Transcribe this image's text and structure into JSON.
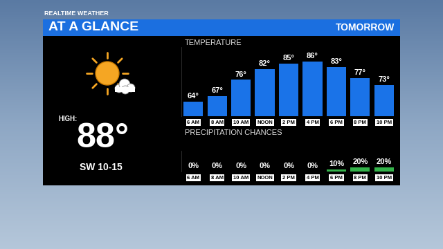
{
  "header": {
    "branding": "REALTIME WEATHER",
    "title": "AT A GLANCE",
    "period": "TOMORROW",
    "high_label": "HIGH:",
    "high": "88°",
    "wind": "SW 10-15"
  },
  "chart_data": [
    {
      "type": "bar",
      "title": "TEMPERATURE",
      "categories": [
        "6 AM",
        "8 AM",
        "10 AM",
        "NOON",
        "2 PM",
        "4 PM",
        "6 PM",
        "8 PM",
        "10 PM"
      ],
      "values": [
        64,
        67,
        76,
        82,
        85,
        86,
        83,
        77,
        73
      ],
      "value_labels": [
        "64°",
        "67°",
        "76°",
        "82°",
        "85°",
        "86°",
        "83°",
        "77°",
        "73°"
      ],
      "color": "#1a73e8",
      "ylim": [
        56,
        94
      ],
      "yticks": [],
      "data_labels": true,
      "tick_labels": "x"
    },
    {
      "type": "bar",
      "title": "PRECIPITATION CHANCES",
      "categories": [
        "6 AM",
        "8 AM",
        "10 AM",
        "NOON",
        "2 PM",
        "4 PM",
        "6 PM",
        "8 PM",
        "10 PM"
      ],
      "values": [
        0,
        0,
        0,
        0,
        0,
        0,
        10,
        20,
        20
      ],
      "value_labels": [
        "0%",
        "0%",
        "0%",
        "0%",
        "0%",
        "0%",
        "10%",
        "20%",
        "20%"
      ],
      "color": "#33b249",
      "ylim": [
        0,
        100
      ],
      "yticks": [],
      "data_labels": true,
      "tick_labels": "x"
    }
  ]
}
